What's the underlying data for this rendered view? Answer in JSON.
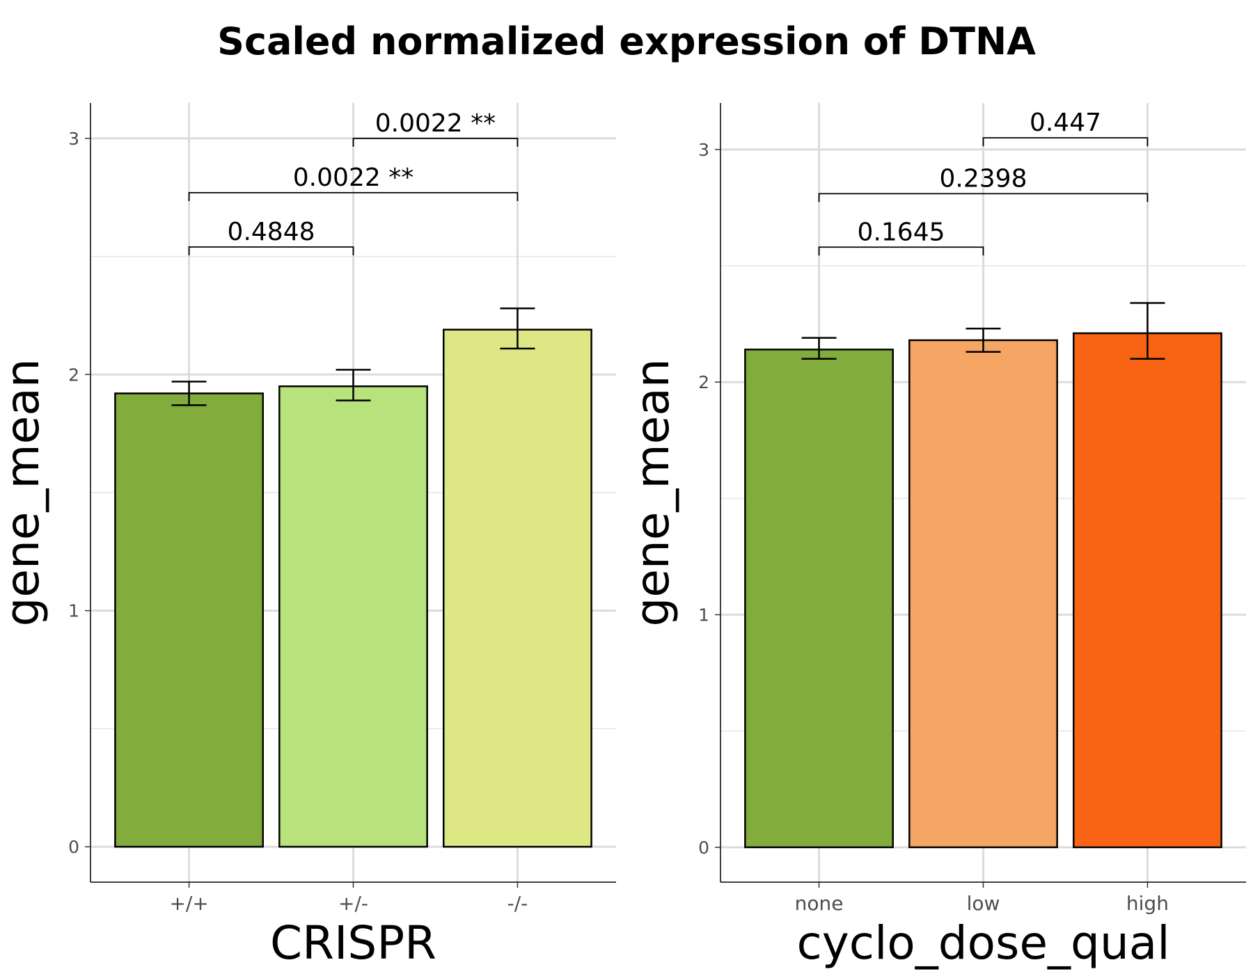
{
  "title": "Scaled normalized expression of DTNA",
  "chart_data": [
    {
      "type": "bar",
      "xlabel": "CRISPR",
      "ylabel": "gene_mean",
      "ylim": [
        -0.15,
        3.15
      ],
      "yticks": [
        0,
        1,
        2,
        3
      ],
      "grid": true,
      "categories": [
        "+/+",
        "+/-",
        "-/-"
      ],
      "values": [
        1.92,
        1.95,
        2.19
      ],
      "error_low": [
        1.87,
        1.89,
        2.11
      ],
      "error_high": [
        1.97,
        2.02,
        2.28
      ],
      "colors": [
        "#82ac3c",
        "#b8e27c",
        "#dde884"
      ],
      "comparisons": [
        {
          "from": 0,
          "to": 1,
          "y": 2.54,
          "label": "0.4848"
        },
        {
          "from": 0,
          "to": 2,
          "y": 2.77,
          "label": "0.0022 **"
        },
        {
          "from": 1,
          "to": 2,
          "y": 3.0,
          "label": "0.0022 **"
        }
      ]
    },
    {
      "type": "bar",
      "xlabel": "cyclo_dose_qual",
      "ylabel": "gene_mean",
      "ylim": [
        -0.15,
        3.2
      ],
      "yticks": [
        0,
        1,
        2,
        3
      ],
      "grid": true,
      "categories": [
        "none",
        "low",
        "high"
      ],
      "values": [
        2.14,
        2.18,
        2.21
      ],
      "error_low": [
        2.1,
        2.13,
        2.1
      ],
      "error_high": [
        2.19,
        2.23,
        2.34
      ],
      "colors": [
        "#82ac3c",
        "#f5a664",
        "#f86414"
      ],
      "comparisons": [
        {
          "from": 0,
          "to": 1,
          "y": 2.58,
          "label": "0.1645"
        },
        {
          "from": 0,
          "to": 2,
          "y": 2.81,
          "label": "0.2398"
        },
        {
          "from": 1,
          "to": 2,
          "y": 3.05,
          "label": "0.447"
        }
      ]
    }
  ]
}
